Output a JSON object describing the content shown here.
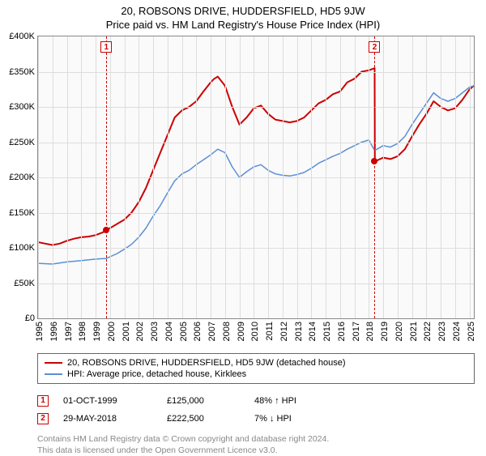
{
  "title": "20, ROBSONS DRIVE, HUDDERSFIELD, HD5 9JW",
  "subtitle": "Price paid vs. HM Land Registry's House Price Index (HPI)",
  "chart": {
    "type": "line",
    "background_color": "#fafafa",
    "grid_color": "#dddddd",
    "border_color": "#888888",
    "ylim": [
      0,
      400000
    ],
    "ytick_step": 50000,
    "y_tick_labels": [
      "£0",
      "£50K",
      "£100K",
      "£150K",
      "£200K",
      "£250K",
      "£300K",
      "£350K",
      "£400K"
    ],
    "x_years": [
      1995,
      1996,
      1997,
      1998,
      1999,
      2000,
      2001,
      2002,
      2003,
      2004,
      2005,
      2006,
      2007,
      2008,
      2009,
      2010,
      2011,
      2012,
      2013,
      2014,
      2015,
      2016,
      2017,
      2018,
      2019,
      2020,
      2021,
      2022,
      2023,
      2024,
      2025
    ],
    "label_fontsize": 11,
    "series": [
      {
        "name": "property",
        "label": "20, ROBSONS DRIVE, HUDDERSFIELD, HD5 9JW (detached house)",
        "color": "#cc0000",
        "line_width": 2,
        "data": [
          [
            1995.0,
            108000
          ],
          [
            1995.5,
            106000
          ],
          [
            1996.0,
            104000
          ],
          [
            1996.5,
            106000
          ],
          [
            1997.0,
            110000
          ],
          [
            1997.5,
            113000
          ],
          [
            1998.0,
            115000
          ],
          [
            1998.5,
            116000
          ],
          [
            1999.0,
            118000
          ],
          [
            1999.5,
            122000
          ],
          [
            1999.75,
            125000
          ],
          [
            2000.5,
            134000
          ],
          [
            2001.0,
            140000
          ],
          [
            2001.5,
            150000
          ],
          [
            2002.0,
            165000
          ],
          [
            2002.5,
            185000
          ],
          [
            2003.0,
            210000
          ],
          [
            2003.5,
            235000
          ],
          [
            2004.0,
            260000
          ],
          [
            2004.5,
            285000
          ],
          [
            2005.0,
            295000
          ],
          [
            2005.5,
            300000
          ],
          [
            2006.0,
            308000
          ],
          [
            2006.5,
            322000
          ],
          [
            2007.0,
            335000
          ],
          [
            2007.25,
            340000
          ],
          [
            2007.5,
            343000
          ],
          [
            2008.0,
            330000
          ],
          [
            2008.5,
            300000
          ],
          [
            2009.0,
            275000
          ],
          [
            2009.5,
            285000
          ],
          [
            2010.0,
            298000
          ],
          [
            2010.5,
            302000
          ],
          [
            2011.0,
            290000
          ],
          [
            2011.5,
            282000
          ],
          [
            2012.0,
            280000
          ],
          [
            2012.5,
            278000
          ],
          [
            2013.0,
            280000
          ],
          [
            2013.5,
            285000
          ],
          [
            2014.0,
            295000
          ],
          [
            2014.5,
            305000
          ],
          [
            2015.0,
            310000
          ],
          [
            2015.5,
            318000
          ],
          [
            2016.0,
            322000
          ],
          [
            2016.5,
            335000
          ],
          [
            2017.0,
            340000
          ],
          [
            2017.5,
            350000
          ],
          [
            2018.0,
            352000
          ],
          [
            2018.4,
            355000
          ],
          [
            2018.42,
            222500
          ],
          [
            2019.0,
            228000
          ],
          [
            2019.5,
            226000
          ],
          [
            2020.0,
            230000
          ],
          [
            2020.5,
            240000
          ],
          [
            2021.0,
            258000
          ],
          [
            2021.5,
            275000
          ],
          [
            2022.0,
            290000
          ],
          [
            2022.5,
            308000
          ],
          [
            2023.0,
            300000
          ],
          [
            2023.5,
            295000
          ],
          [
            2024.0,
            298000
          ],
          [
            2024.5,
            310000
          ],
          [
            2025.0,
            325000
          ],
          [
            2025.3,
            330000
          ]
        ]
      },
      {
        "name": "hpi",
        "label": "HPI: Average price, detached house, Kirklees",
        "color": "#5b8fd6",
        "line_width": 1.5,
        "data": [
          [
            1995.0,
            78000
          ],
          [
            1996.0,
            77000
          ],
          [
            1997.0,
            80000
          ],
          [
            1998.0,
            82000
          ],
          [
            1999.0,
            84000
          ],
          [
            1999.75,
            85000
          ],
          [
            2000.5,
            92000
          ],
          [
            2001.0,
            98000
          ],
          [
            2001.5,
            105000
          ],
          [
            2002.0,
            115000
          ],
          [
            2002.5,
            128000
          ],
          [
            2003.0,
            145000
          ],
          [
            2003.5,
            160000
          ],
          [
            2004.0,
            178000
          ],
          [
            2004.5,
            195000
          ],
          [
            2005.0,
            205000
          ],
          [
            2005.5,
            210000
          ],
          [
            2006.0,
            218000
          ],
          [
            2006.5,
            225000
          ],
          [
            2007.0,
            232000
          ],
          [
            2007.5,
            240000
          ],
          [
            2008.0,
            235000
          ],
          [
            2008.5,
            215000
          ],
          [
            2009.0,
            200000
          ],
          [
            2009.5,
            208000
          ],
          [
            2010.0,
            215000
          ],
          [
            2010.5,
            218000
          ],
          [
            2011.0,
            210000
          ],
          [
            2011.5,
            205000
          ],
          [
            2012.0,
            203000
          ],
          [
            2012.5,
            202000
          ],
          [
            2013.0,
            204000
          ],
          [
            2013.5,
            207000
          ],
          [
            2014.0,
            213000
          ],
          [
            2014.5,
            220000
          ],
          [
            2015.0,
            225000
          ],
          [
            2015.5,
            230000
          ],
          [
            2016.0,
            234000
          ],
          [
            2016.5,
            240000
          ],
          [
            2017.0,
            245000
          ],
          [
            2017.5,
            250000
          ],
          [
            2018.0,
            253000
          ],
          [
            2018.4,
            238000
          ],
          [
            2019.0,
            245000
          ],
          [
            2019.5,
            243000
          ],
          [
            2020.0,
            248000
          ],
          [
            2020.5,
            258000
          ],
          [
            2021.0,
            275000
          ],
          [
            2021.5,
            290000
          ],
          [
            2022.0,
            305000
          ],
          [
            2022.5,
            320000
          ],
          [
            2023.0,
            312000
          ],
          [
            2023.5,
            308000
          ],
          [
            2024.0,
            312000
          ],
          [
            2024.5,
            320000
          ],
          [
            2025.0,
            328000
          ],
          [
            2025.3,
            330000
          ]
        ]
      }
    ],
    "markers": [
      {
        "id": "1",
        "x": 1999.75,
        "y": 125000,
        "color": "#cc0000"
      },
      {
        "id": "2",
        "x": 2018.4,
        "y": 222500,
        "color": "#cc0000"
      }
    ]
  },
  "legend": {
    "items": [
      {
        "color": "#cc0000",
        "label": "20, ROBSONS DRIVE, HUDDERSFIELD, HD5 9JW (detached house)"
      },
      {
        "color": "#5b8fd6",
        "label": "HPI: Average price, detached house, Kirklees"
      }
    ]
  },
  "transactions": [
    {
      "id": "1",
      "date": "01-OCT-1999",
      "price": "£125,000",
      "diff": "48% ↑ HPI",
      "color": "#cc0000"
    },
    {
      "id": "2",
      "date": "29-MAY-2018",
      "price": "£222,500",
      "diff": "7% ↓ HPI",
      "color": "#cc0000"
    }
  ],
  "footnote_line1": "Contains HM Land Registry data © Crown copyright and database right 2024.",
  "footnote_line2": "This data is licensed under the Open Government Licence v3.0."
}
